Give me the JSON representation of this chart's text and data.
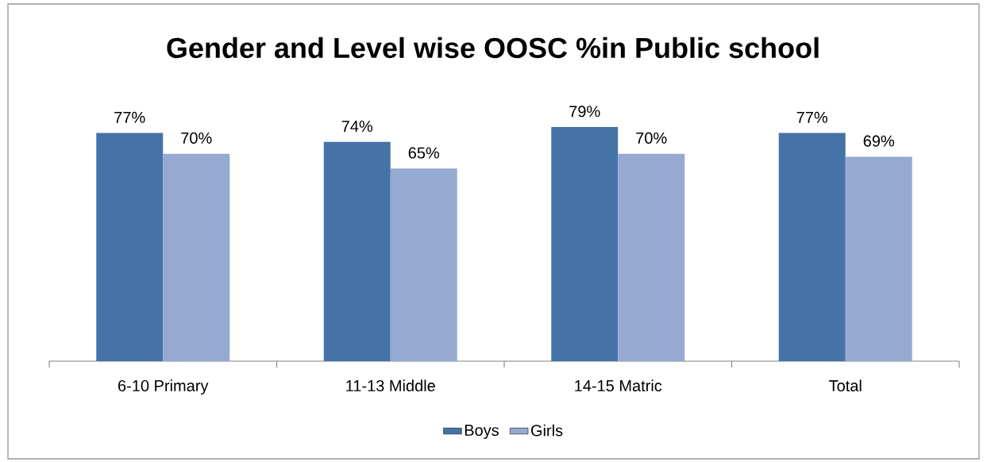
{
  "chart_data": {
    "type": "bar",
    "title": "Gender and Level wise OOSC %in Public school",
    "categories": [
      "6-10 Primary",
      "11-13 Middle",
      "14-15 Matric",
      "Total"
    ],
    "series": [
      {
        "name": "Boys",
        "color": "#4572a7",
        "values": [
          77,
          74,
          79,
          77
        ],
        "value_labels": [
          "77%",
          "74%",
          "79%",
          "77%"
        ]
      },
      {
        "name": "Girls",
        "color": "#95a9d1",
        "values": [
          70,
          65,
          70,
          69
        ],
        "value_labels": [
          "70%",
          "65%",
          "70%",
          "69%"
        ]
      }
    ],
    "legend": "bottom"
  }
}
